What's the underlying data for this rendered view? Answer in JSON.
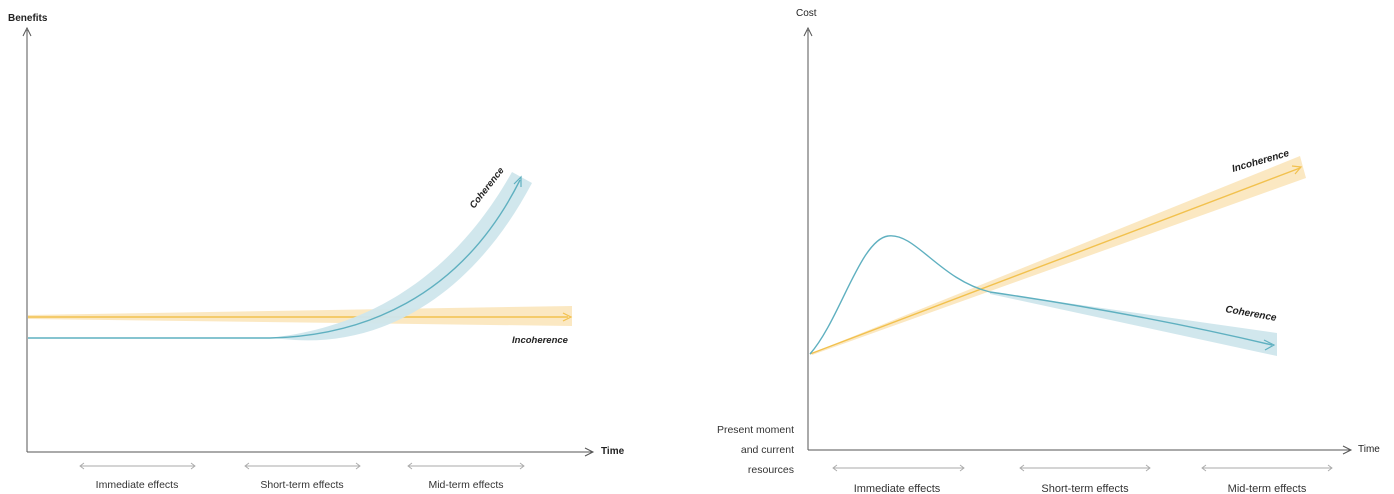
{
  "colors": {
    "coherence": "#5fb0c0",
    "coherence_band": "#cfe6ec",
    "incoherence": "#f2c14e",
    "incoherence_band": "#fbe6bb",
    "axis": "#555555"
  },
  "left_chart": {
    "y_axis_title": "Benefits",
    "x_axis_title": "Time",
    "curve_label_coherence": "Coherence",
    "curve_label_incoherence": "Incoherence",
    "periods": [
      "Immediate effects",
      "Short-term effects",
      "Mid-term effects"
    ]
  },
  "right_chart": {
    "y_axis_title": "Cost",
    "x_axis_title": "Time",
    "curve_label_incoherence": "Incoherence",
    "curve_label_coherence": "Coherence",
    "origin_label_lines": [
      "Present moment",
      "and current",
      "resources"
    ],
    "periods": [
      "Immediate effects",
      "Short-term effects",
      "Mid-term effects"
    ]
  }
}
